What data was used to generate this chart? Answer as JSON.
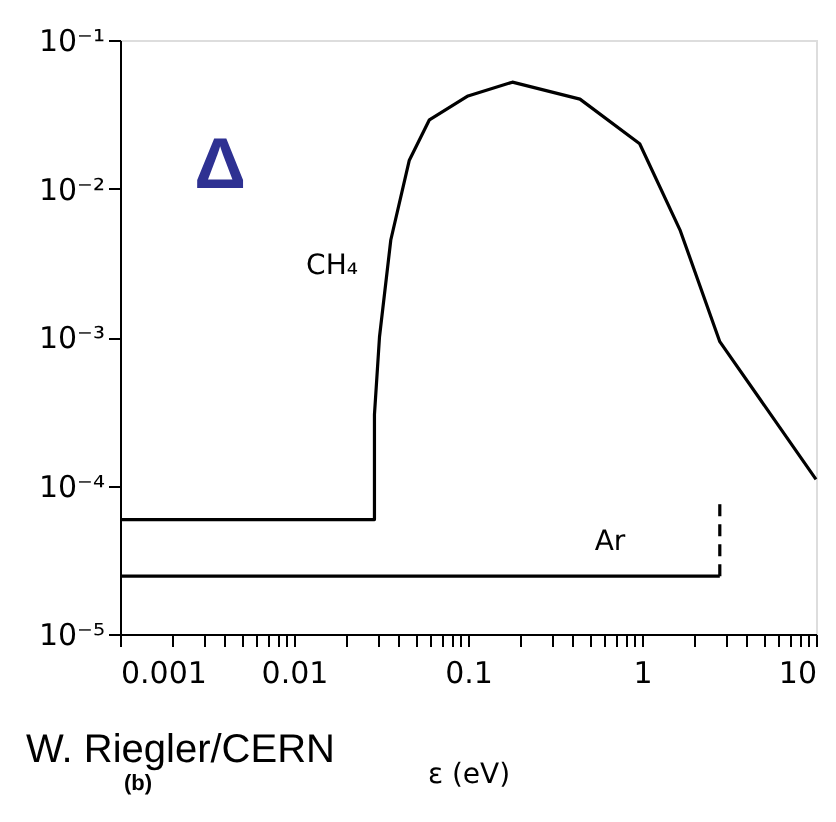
{
  "chart_data": {
    "type": "line",
    "xlabel": "ε (eV)",
    "log": "xy",
    "xlim": [
      0.001,
      10
    ],
    "ylim": [
      1e-05,
      0.1
    ],
    "xticks": [
      0.001,
      {
        "value": 0.002,
        "label": null
      },
      {
        "value": 0.003,
        "label": null
      },
      {
        "value": 0.004,
        "label": null
      },
      {
        "value": 0.005,
        "label": null
      },
      {
        "value": 0.006,
        "label": null
      },
      {
        "value": 0.007,
        "label": null
      },
      {
        "value": 0.008,
        "label": null
      },
      {
        "value": 0.009,
        "label": null
      },
      0.01,
      {
        "value": 0.02,
        "label": null
      },
      {
        "value": 0.03,
        "label": null
      },
      {
        "value": 0.04,
        "label": null
      },
      {
        "value": 0.05,
        "label": null
      },
      {
        "value": 0.06,
        "label": null
      },
      {
        "value": 0.07,
        "label": null
      },
      {
        "value": 0.08,
        "label": null
      },
      {
        "value": 0.09,
        "label": null
      },
      0.1,
      {
        "value": 0.2,
        "label": null
      },
      {
        "value": 0.3,
        "label": null
      },
      {
        "value": 0.4,
        "label": null
      },
      {
        "value": 0.5,
        "label": null
      },
      {
        "value": 0.6,
        "label": null
      },
      {
        "value": 0.7,
        "label": null
      },
      {
        "value": 0.8,
        "label": null
      },
      {
        "value": 0.9,
        "label": null
      },
      1,
      {
        "value": 2,
        "label": null
      },
      {
        "value": 3,
        "label": null
      },
      {
        "value": 4,
        "label": null
      },
      {
        "value": 5,
        "label": null
      },
      {
        "value": 6,
        "label": null
      },
      {
        "value": 7,
        "label": null
      },
      {
        "value": 8,
        "label": null
      },
      {
        "value": 9,
        "label": null
      },
      10
    ],
    "yticks": [
      {
        "value": 1e-05,
        "label": "10⁻⁵"
      },
      {
        "value": 0.0001,
        "label": "10⁻⁴"
      },
      {
        "value": 0.001,
        "label": "10⁻³"
      },
      {
        "value": 0.01,
        "label": "10⁻²"
      },
      {
        "value": 0.1,
        "label": "10⁻¹"
      }
    ],
    "grid": false,
    "marker": "none",
    "series": [
      {
        "name": "CH₄",
        "color": "#000000",
        "line_style": "solid",
        "x": [
          0.001,
          0.029,
          0.029,
          0.031,
          0.036,
          0.046,
          0.06,
          0.1,
          0.18,
          0.44,
          0.97,
          1.66,
          2.8,
          5.5,
          10
        ],
        "values": [
          5.9e-05,
          5.9e-05,
          0.0003,
          0.001,
          0.0045,
          0.0155,
          0.029,
          0.042,
          0.052,
          0.04,
          0.02,
          0.0052,
          0.00093,
          0.0003,
          0.00011
        ]
      },
      {
        "name": "Ar",
        "color": "#000000",
        "line_style": "solid",
        "x": [
          0.001,
          2.8
        ],
        "values": [
          2.45e-05,
          2.45e-05
        ]
      },
      {
        "color": "#000000",
        "line_style": "dashed",
        "x": [
          2.8,
          2.8
        ],
        "values": [
          2.45e-05,
          8.3e-05
        ]
      }
    ],
    "annotations": [
      "Δ",
      "W. Riegler/CERN",
      "(b)"
    ]
  }
}
